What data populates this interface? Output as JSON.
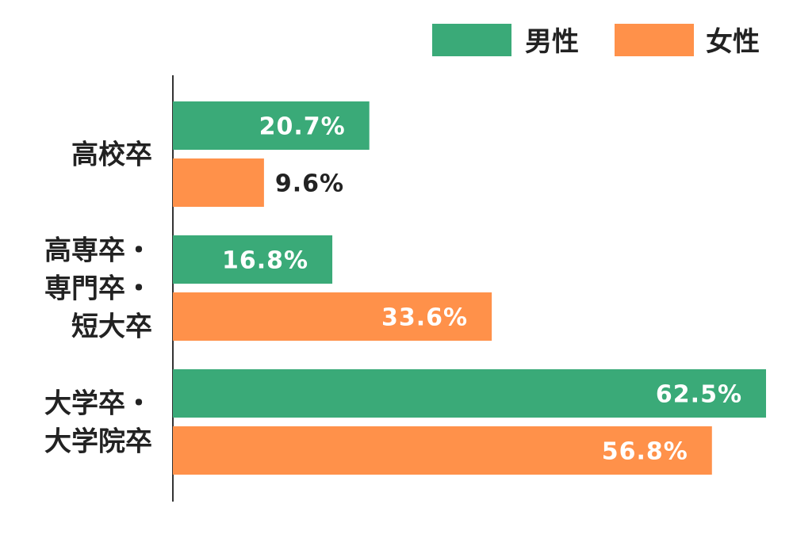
{
  "chart_data": {
    "type": "bar",
    "orientation": "horizontal",
    "categories": [
      [
        "高校卒"
      ],
      [
        "高専卒・",
        "専門卒・",
        "短大卒"
      ],
      [
        "大学卒・",
        "大学院卒"
      ]
    ],
    "series": [
      {
        "name": "男性",
        "values": [
          20.7,
          16.8,
          62.5
        ],
        "color": "#3aaa78"
      },
      {
        "name": "女性",
        "values": [
          9.6,
          33.6,
          56.8
        ],
        "color": "#ff914a"
      }
    ],
    "value_labels": [
      [
        "20.7%",
        "16.8%",
        "62.5%"
      ],
      [
        "9.6%",
        "33.6%",
        "56.8%"
      ]
    ],
    "xlim": [
      0,
      62.5
    ],
    "legend_position": "top-right",
    "grid": false
  }
}
